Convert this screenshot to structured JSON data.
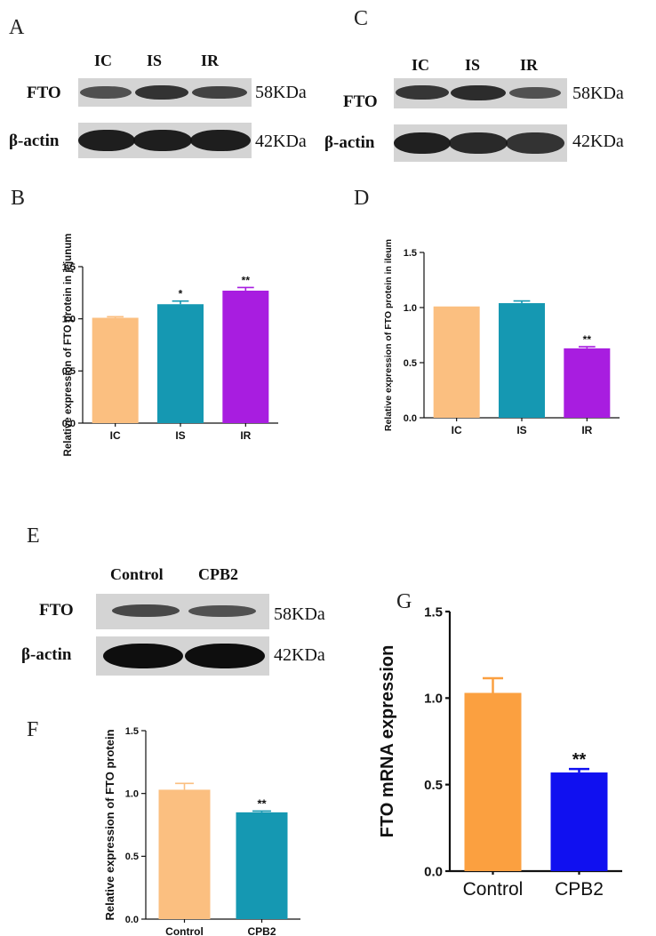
{
  "figure": {
    "panels": {
      "A": "A",
      "B": "B",
      "C": "C",
      "D": "D",
      "E": "E",
      "F": "F",
      "G": "G"
    },
    "blot_A": {
      "lanes": [
        "IC",
        "IS",
        "IR"
      ],
      "rows": [
        {
          "label": "FTO",
          "size": "58KDa",
          "intensity": [
            0.72,
            0.88,
            0.8
          ]
        },
        {
          "label": "β-actin",
          "size": "42KDa",
          "intensity": [
            0.95,
            0.95,
            0.95
          ]
        }
      ]
    },
    "blot_C": {
      "lanes": [
        "IC",
        "IS",
        "IR"
      ],
      "rows": [
        {
          "label": "FTO",
          "size": "58KDa",
          "intensity": [
            0.85,
            0.9,
            0.7
          ]
        },
        {
          "label": "β-actin",
          "size": "42KDa",
          "intensity": [
            0.95,
            0.9,
            0.85
          ]
        }
      ]
    },
    "blot_E": {
      "lanes": [
        "Control",
        "CPB2"
      ],
      "rows": [
        {
          "label": "FTO",
          "size": "58KDa",
          "intensity": [
            0.75,
            0.7
          ]
        },
        {
          "label": "β-actin",
          "size": "42KDa",
          "intensity": [
            1.0,
            1.0
          ]
        }
      ]
    }
  },
  "chart_data": [
    {
      "id": "B",
      "type": "bar",
      "categories": [
        "IC",
        "IS",
        "IR"
      ],
      "values": [
        1.01,
        1.14,
        1.27
      ],
      "errors": [
        0.01,
        0.03,
        0.03
      ],
      "significance": [
        "",
        "*",
        "**"
      ],
      "colors": [
        "#fbbf80",
        "#1598b2",
        "#a81de0"
      ],
      "ylabel": "Relative expression of FTO protein in jejunum",
      "xlabel": "",
      "ylim": [
        0,
        1.5
      ],
      "yticks": [
        "0.0",
        "0.5",
        "1.0",
        "1.5"
      ]
    },
    {
      "id": "D",
      "type": "bar",
      "categories": [
        "IC",
        "IS",
        "IR"
      ],
      "values": [
        1.01,
        1.04,
        0.63
      ],
      "errors": [
        0.0,
        0.02,
        0.015
      ],
      "significance": [
        "",
        "",
        "**"
      ],
      "colors": [
        "#fbbf80",
        "#1598b2",
        "#a81de0"
      ],
      "ylabel": "Relative expression of FTO protein in ileum",
      "xlabel": "",
      "ylim": [
        0,
        1.5
      ],
      "yticks": [
        "0.0",
        "0.5",
        "1.0",
        "1.5"
      ]
    },
    {
      "id": "F",
      "type": "bar",
      "categories": [
        "Control",
        "CPB2"
      ],
      "values": [
        1.03,
        0.85
      ],
      "errors": [
        0.05,
        0.01
      ],
      "significance": [
        "",
        "**"
      ],
      "colors": [
        "#fbbf80",
        "#1598b2"
      ],
      "ylabel": "Relative expression of FTO protein",
      "xlabel": "",
      "ylim": [
        0,
        1.5
      ],
      "yticks": [
        "0.0",
        "0.5",
        "1.0",
        "1.5"
      ]
    },
    {
      "id": "G",
      "type": "bar",
      "categories": [
        "Control",
        "CPB2"
      ],
      "values": [
        1.03,
        0.57
      ],
      "errors": [
        0.085,
        0.02
      ],
      "significance": [
        "",
        "**"
      ],
      "colors": [
        "#fba040",
        "#1010f0"
      ],
      "ylabel": "FTO mRNA expression",
      "xlabel": "",
      "ylim": [
        0,
        1.5
      ],
      "yticks": [
        "0.0",
        "0.5",
        "1.0",
        "1.5"
      ]
    }
  ]
}
